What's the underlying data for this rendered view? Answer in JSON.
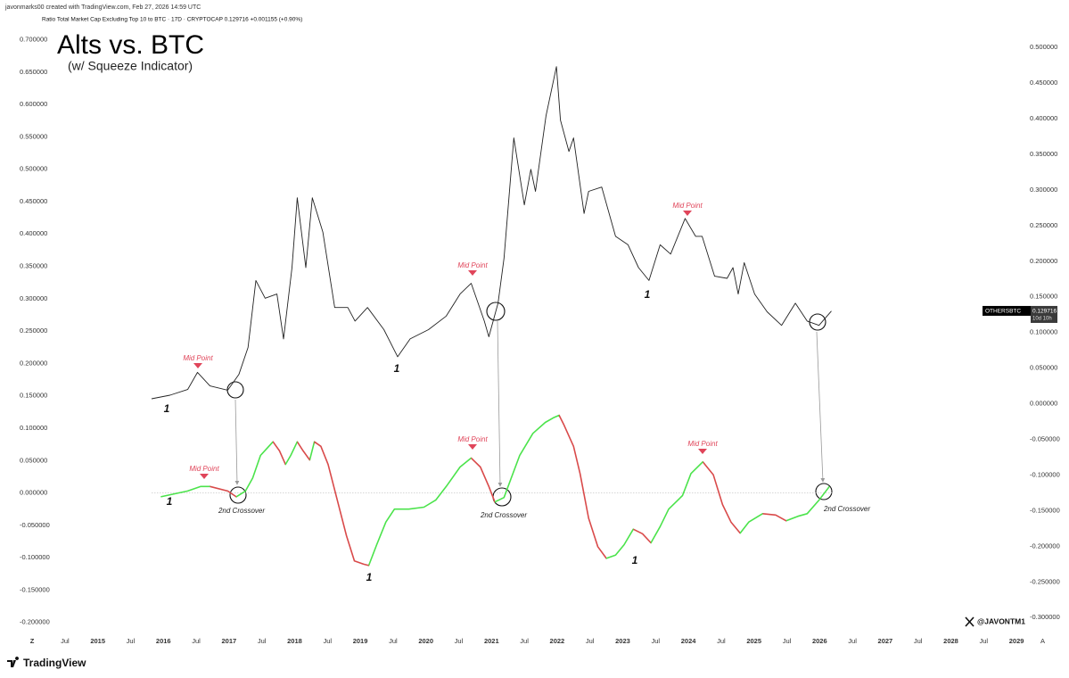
{
  "header": {
    "line1": "javonmarks00 created with TradingView.com, Feb 27, 2026 14:59 UTC",
    "line2": "Ratio Total Market Cap Excluding Top 10 to BTC · 17D · CRYPTOCAP  0.129716  +0.001155 (+0.90%)"
  },
  "footer": {
    "brand": "TradingView"
  },
  "chart_data": {
    "type": "line",
    "title": "Alts vs. BTC",
    "subtitle": "(w/ Squeeze Indicator)",
    "xlim": [
      2013.51,
      2029.61
    ],
    "xticks": [
      {
        "value": 2014,
        "label": "Z"
      },
      {
        "value": 2014.5,
        "label": "Jul"
      },
      2015,
      {
        "value": 2015.5,
        "label": "Jul"
      },
      2016,
      {
        "value": 2016.5,
        "label": "Jul"
      },
      2017,
      {
        "value": 2017.5,
        "label": "Jul"
      },
      2018,
      {
        "value": 2018.5,
        "label": "Jul"
      },
      2019,
      {
        "value": 2019.5,
        "label": "Jul"
      },
      2020,
      {
        "value": 2020.5,
        "label": "Jul"
      },
      2021,
      {
        "value": 2021.5,
        "label": "Jul"
      },
      2022,
      {
        "value": 2022.5,
        "label": "Jul"
      },
      2023,
      {
        "value": 2023.5,
        "label": "Jul"
      },
      2024,
      {
        "value": 2024.5,
        "label": "Jul"
      },
      2025,
      {
        "value": 2025.5,
        "label": "Jul"
      },
      2026,
      {
        "value": 2026.5,
        "label": "Jul"
      },
      2027,
      {
        "value": 2027.5,
        "label": "Jul"
      },
      2028,
      {
        "value": 2028.5,
        "label": "Jul"
      },
      2029,
      {
        "value": 2029.4,
        "label": "A"
      }
    ],
    "ylim": [
      -0.21,
      0.72
    ],
    "yticks": [
      {
        "value": 0.7,
        "label": "0.700000"
      },
      {
        "value": 0.65,
        "label": "0.650000"
      },
      {
        "value": 0.6,
        "label": "0.600000"
      },
      {
        "value": 0.55,
        "label": "0.550000"
      },
      {
        "value": 0.5,
        "label": "0.500000"
      },
      {
        "value": 0.45,
        "label": "0.450000"
      },
      {
        "value": 0.4,
        "label": "0.400000"
      },
      {
        "value": 0.35,
        "label": "0.350000"
      },
      {
        "value": 0.3,
        "label": "0.300000"
      },
      {
        "value": 0.25,
        "label": "0.250000"
      },
      {
        "value": 0.2,
        "label": "0.200000"
      },
      {
        "value": 0.15,
        "label": "0.150000"
      },
      {
        "value": 0.1,
        "label": "0.100000"
      },
      {
        "value": 0.05,
        "label": "0.050000"
      },
      {
        "value": 0,
        "label": "0.000000"
      },
      {
        "value": -0.05,
        "label": "-0.050000"
      },
      {
        "value": -0.1,
        "label": "-0.100000"
      },
      {
        "value": -0.15,
        "label": "-0.150000"
      },
      {
        "value": -0.2,
        "label": "-0.200000"
      }
    ],
    "y2lim": [
      -0.316,
      0.529
    ],
    "y2ticks": [
      {
        "value": 0.5,
        "label": "0.500000"
      },
      {
        "value": 0.45,
        "label": "0.450000"
      },
      {
        "value": 0.4,
        "label": "0.400000"
      },
      {
        "value": 0.35,
        "label": "0.350000"
      },
      {
        "value": 0.3,
        "label": "0.300000"
      },
      {
        "value": 0.25,
        "label": "0.250000"
      },
      {
        "value": 0.2,
        "label": "0.200000"
      },
      {
        "value": 0.15,
        "label": "0.150000"
      },
      {
        "value": 0.1,
        "label": "0.100000"
      },
      {
        "value": 0.05,
        "label": "0.050000"
      },
      {
        "value": 0,
        "label": "0.000000"
      },
      {
        "value": -0.05,
        "label": "-0.050000"
      },
      {
        "value": -0.1,
        "label": "-0.100000"
      },
      {
        "value": -0.15,
        "label": "-0.150000"
      },
      {
        "value": -0.2,
        "label": "-0.200000"
      },
      {
        "value": -0.25,
        "label": "-0.250000"
      },
      {
        "value": -0.3,
        "label": "-0.300000"
      }
    ],
    "series": [
      {
        "name": "OTHERSBTC",
        "color": "#222222",
        "axis": "y2",
        "last_value": 0.129716,
        "countdown": "10d 10h",
        "x": [
          2015.82,
          2016.1,
          2016.37,
          2016.52,
          2016.71,
          2016.98,
          2017.15,
          2017.29,
          2017.41,
          2017.55,
          2017.73,
          2017.83,
          2017.96,
          2018.04,
          2018.17,
          2018.27,
          2018.43,
          2018.61,
          2018.81,
          2018.92,
          2019.11,
          2019.36,
          2019.57,
          2019.76,
          2020.04,
          2020.31,
          2020.52,
          2020.69,
          2020.89,
          2020.96,
          2021.1,
          2021.19,
          2021.34,
          2021.5,
          2021.6,
          2021.67,
          2021.83,
          2021.99,
          2022.05,
          2022.18,
          2022.25,
          2022.41,
          2022.48,
          2022.68,
          2022.89,
          2023.08,
          2023.24,
          2023.4,
          2023.57,
          2023.73,
          2023.95,
          2024.11,
          2024.21,
          2024.4,
          2024.59,
          2024.68,
          2024.76,
          2024.85,
          2025.01,
          2025.2,
          2025.42,
          2025.63,
          2025.81,
          2025.99,
          2026.18
        ],
        "values": [
          0.007,
          0.012,
          0.02,
          0.044,
          0.025,
          0.019,
          0.041,
          0.079,
          0.173,
          0.148,
          0.154,
          0.091,
          0.191,
          0.289,
          0.191,
          0.289,
          0.241,
          0.135,
          0.135,
          0.116,
          0.135,
          0.104,
          0.066,
          0.091,
          0.104,
          0.123,
          0.154,
          0.169,
          0.116,
          0.094,
          0.141,
          0.204,
          0.373,
          0.279,
          0.329,
          0.298,
          0.404,
          0.473,
          0.398,
          0.354,
          0.373,
          0.267,
          0.298,
          0.304,
          0.235,
          0.223,
          0.191,
          0.173,
          0.223,
          0.21,
          0.26,
          0.235,
          0.235,
          0.179,
          0.176,
          0.191,
          0.154,
          0.198,
          0.154,
          0.129,
          0.11,
          0.141,
          0.116,
          0.11,
          0.13
        ]
      },
      {
        "color": "#4be34b",
        "falling_color": "#d94a4a",
        "x": [
          2015.96,
          2016.37,
          2016.57,
          2016.71,
          2016.98,
          2017.11,
          2017.25,
          2017.36,
          2017.48,
          2017.67,
          2017.77,
          2017.86,
          2017.94,
          2018.04,
          2018.13,
          2018.23,
          2018.3,
          2018.4,
          2018.51,
          2018.65,
          2018.79,
          2018.91,
          2019.05,
          2019.13,
          2019.25,
          2019.39,
          2019.52,
          2019.74,
          2019.97,
          2020.15,
          2020.31,
          2020.52,
          2020.69,
          2020.83,
          2020.96,
          2021.05,
          2021.19,
          2021.3,
          2021.43,
          2021.63,
          2021.82,
          2021.94,
          2022.03,
          2022.1,
          2022.25,
          2022.35,
          2022.48,
          2022.62,
          2022.75,
          2022.89,
          2023.02,
          2023.16,
          2023.3,
          2023.43,
          2023.57,
          2023.7,
          2023.91,
          2024.04,
          2024.22,
          2024.38,
          2024.52,
          2024.65,
          2024.79,
          2024.92,
          2025.13,
          2025.33,
          2025.49,
          2025.67,
          2025.81,
          2025.99,
          2026.15
        ],
        "values": [
          -0.006,
          0.003,
          0.01,
          0.01,
          0.003,
          -0.006,
          0.003,
          0.023,
          0.058,
          0.079,
          0.065,
          0.044,
          0.058,
          0.079,
          0.065,
          0.051,
          0.079,
          0.072,
          0.044,
          -0.011,
          -0.066,
          -0.105,
          -0.11,
          -0.112,
          -0.08,
          -0.045,
          -0.025,
          -0.025,
          -0.022,
          -0.011,
          0.01,
          0.04,
          0.054,
          0.04,
          0.01,
          -0.014,
          -0.007,
          0.023,
          0.058,
          0.092,
          0.109,
          0.116,
          0.12,
          0.106,
          0.072,
          0.03,
          -0.039,
          -0.083,
          -0.101,
          -0.096,
          -0.08,
          -0.056,
          -0.063,
          -0.077,
          -0.052,
          -0.025,
          -0.004,
          0.03,
          0.048,
          0.028,
          -0.018,
          -0.045,
          -0.062,
          -0.045,
          -0.032,
          -0.034,
          -0.043,
          -0.036,
          -0.032,
          -0.011,
          0.01
        ]
      }
    ],
    "annotations": {
      "mid_points": [
        "Mid Point",
        "Mid Point",
        "Mid Point",
        "Mid Point",
        "Mid Point",
        "Mid Point"
      ],
      "cycle_lows": [
        "1",
        "1",
        "1",
        "1",
        "1",
        "1"
      ],
      "crossovers": [
        "2nd Crossover",
        "2nd Crossover",
        "2nd Crossover"
      ]
    },
    "watermark": "@JAVONTM1"
  }
}
